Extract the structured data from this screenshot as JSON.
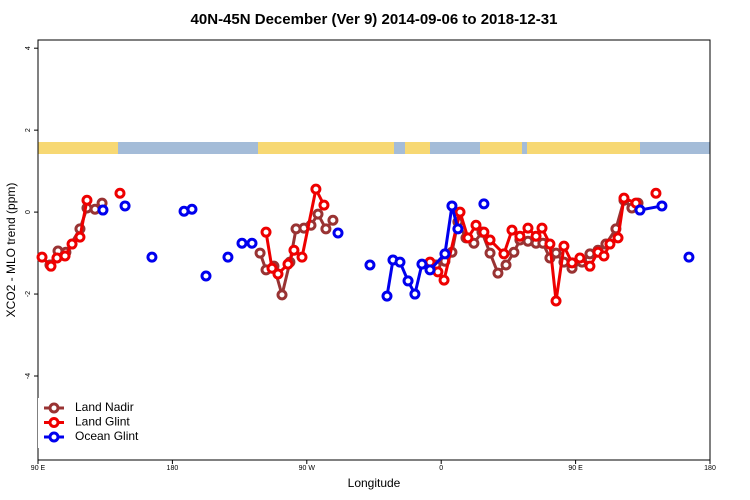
{
  "chart_data": {
    "type": "line",
    "title": "40N-45N December (Ver 9)   2014-09-06 to 2018-12-31",
    "xlabel": "Longitude",
    "ylabel": "XCO2 - MLO trend (ppm)",
    "xlim": [
      90,
      540
    ],
    "ylim": [
      -6.05,
      4.2
    ],
    "xticks": [
      {
        "value": 90,
        "label": "90 E"
      },
      180,
      {
        "value": 270,
        "label": "90 W"
      },
      {
        "value": 360,
        "label": "0"
      },
      {
        "value": 450,
        "label": "90 E"
      },
      {
        "value": 540,
        "label": "180"
      }
    ],
    "yticks": [
      -4,
      -2,
      0,
      2,
      4
    ],
    "legend": "bottomleft",
    "series": [
      {
        "name": "Land Nadir",
        "color": "#993333",
        "x": [
          98.0,
          103.4,
          108.7,
          118.1,
          122.8,
          128.2,
          132.9,
          null,
          238.7,
          242.7,
          248.0,
          253.4,
          258.7,
          262.8,
          268.1,
          272.8,
          277.5,
          282.8,
          287.5,
          null,
          356.5,
          362.5,
          367.2,
          371.2,
          376.6,
          381.9,
          387.3,
          392.7,
          398.0,
          403.4,
          408.7,
          412.7,
          418.1,
          423.5,
          428.1,
          432.8,
          436.9,
          442.2,
          447.6,
          454.3,
          459.6,
          465.0,
          470.3,
          477.0,
          482.4,
          487.7,
          491.8
        ],
        "values": [
          -1.29,
          -0.95,
          -0.98,
          -0.41,
          0.1,
          0.07,
          0.22,
          null,
          -1.0,
          -1.41,
          -1.32,
          -2.02,
          -1.22,
          -0.41,
          -0.39,
          -0.32,
          -0.05,
          -0.41,
          -0.2,
          null,
          -1.29,
          -1.2,
          -0.98,
          -0.24,
          -0.63,
          -0.76,
          -0.49,
          -1.0,
          -1.49,
          -1.29,
          -0.98,
          -0.68,
          -0.71,
          -0.76,
          -0.76,
          -1.12,
          -1.0,
          -1.22,
          -1.37,
          -1.22,
          -1.02,
          -0.93,
          -0.78,
          -0.41,
          0.29,
          0.1,
          0.22
        ]
      },
      {
        "name": "Land Glint",
        "color": "#ee0000",
        "x": [
          92.7,
          98.7,
          102.7,
          108.1,
          112.8,
          118.1,
          122.8,
          null,
          144.9,
          null,
          242.7,
          246.7,
          250.7,
          257.4,
          261.4,
          266.8,
          276.1,
          281.5,
          null,
          352.5,
          357.8,
          361.9,
          372.6,
          377.9,
          383.3,
          388.6,
          392.7,
          402.0,
          407.4,
          412.7,
          418.1,
          423.5,
          427.5,
          432.8,
          436.9,
          442.2,
          447.6,
          452.9,
          459.6,
          465.0,
          469.0,
          473.0,
          478.4,
          482.4,
          490.4,
          null,
          503.8
        ],
        "values": [
          -1.1,
          -1.32,
          -1.12,
          -1.07,
          -0.78,
          -0.61,
          0.29,
          null,
          0.46,
          null,
          -0.49,
          -1.37,
          -1.51,
          -1.27,
          -0.93,
          -1.1,
          0.56,
          0.17,
          null,
          -1.22,
          -1.46,
          -1.66,
          0.0,
          -0.63,
          -0.32,
          -0.49,
          -0.68,
          -1.02,
          -0.44,
          -0.59,
          -0.39,
          -0.59,
          -0.39,
          -0.78,
          -2.17,
          -0.83,
          -1.24,
          -1.12,
          -1.32,
          -0.98,
          -1.07,
          -0.78,
          -0.63,
          0.34,
          0.22,
          null,
          0.46
        ]
      },
      {
        "name": "Ocean Glint",
        "color": "#0000ee",
        "x": [
          133.5,
          null,
          148.3,
          null,
          166.3,
          null,
          187.8,
          193.1,
          null,
          202.5,
          null,
          217.2,
          null,
          226.6,
          233.3,
          null,
          290.9,
          null,
          312.3,
          null,
          323.7,
          327.7,
          332.4,
          337.8,
          342.4,
          347.1,
          352.5,
          362.5,
          367.2,
          371.2,
          null,
          388.6,
          null,
          493.1,
          507.8,
          null,
          525.9
        ],
        "values": [
          0.05,
          null,
          0.15,
          null,
          -1.1,
          null,
          0.02,
          0.07,
          null,
          -1.56,
          null,
          -1.1,
          null,
          -0.76,
          -0.76,
          null,
          -0.51,
          null,
          -1.29,
          null,
          -2.05,
          -1.17,
          -1.22,
          -1.68,
          -2.0,
          -1.27,
          -1.41,
          -1.02,
          0.15,
          -0.41,
          null,
          0.2,
          null,
          0.05,
          0.15,
          null,
          -1.1
        ]
      }
    ]
  }
}
